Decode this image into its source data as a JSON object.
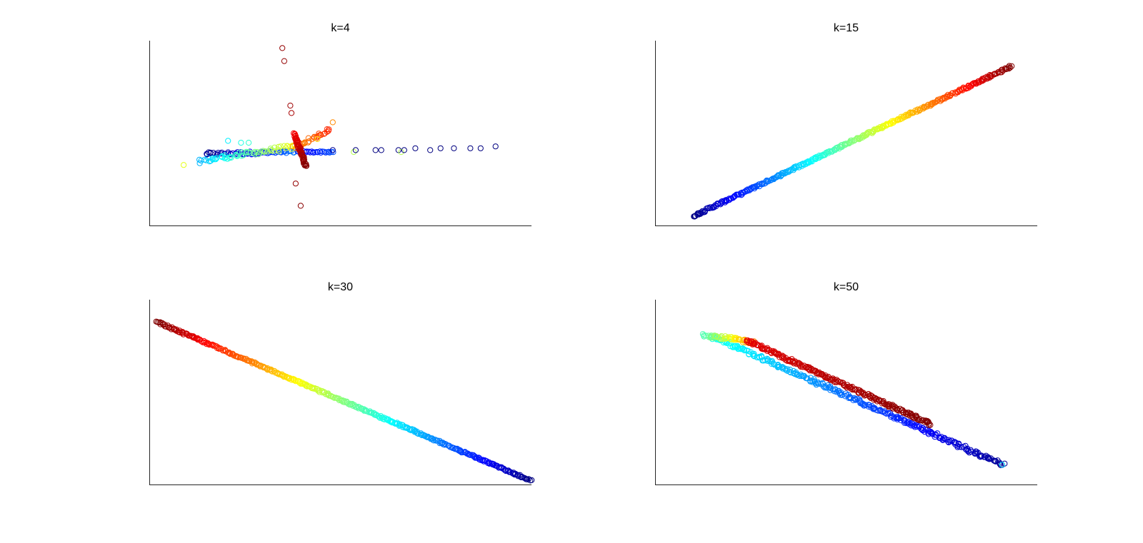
{
  "figure": {
    "colormap": "jet",
    "marker": "open-circle"
  },
  "chart_data": [
    {
      "type": "scatter",
      "title": "k=4",
      "xlabel": "",
      "ylabel": "",
      "xlim": [
        0,
        1
      ],
      "ylim": [
        0,
        1
      ],
      "grid": false,
      "axes_visible": [
        "left",
        "bottom"
      ],
      "ticks": "none",
      "color_by": "point index (jet colormap)",
      "segments": [
        {
          "from": [
            0.15,
            0.39
          ],
          "to": [
            0.39,
            0.4
          ],
          "n": 60,
          "c": [
            0.0,
            0.25
          ],
          "spread": 0.008
        },
        {
          "from": [
            0.13,
            0.35
          ],
          "to": [
            0.38,
            0.43
          ],
          "n": 60,
          "c": [
            0.3,
            0.62
          ],
          "spread": 0.012
        },
        {
          "from": [
            0.39,
            0.4
          ],
          "to": [
            0.48,
            0.4
          ],
          "n": 25,
          "c": [
            0.1,
            0.2
          ],
          "spread": 0.004
        },
        {
          "from": [
            0.38,
            0.42
          ],
          "to": [
            0.47,
            0.52
          ],
          "n": 30,
          "c": [
            0.72,
            0.84
          ],
          "spread": 0.01
        },
        {
          "from": [
            0.38,
            0.5
          ],
          "to": [
            0.41,
            0.32
          ],
          "n": 60,
          "c": [
            0.88,
            1.0
          ],
          "spread": 0.006
        }
      ],
      "points": [
        {
          "x": 0.348,
          "y": 0.96,
          "c": 0.98
        },
        {
          "x": 0.353,
          "y": 0.89,
          "c": 0.98
        },
        {
          "x": 0.369,
          "y": 0.65,
          "c": 0.97
        },
        {
          "x": 0.372,
          "y": 0.61,
          "c": 0.96
        },
        {
          "x": 0.383,
          "y": 0.23,
          "c": 0.98
        },
        {
          "x": 0.396,
          "y": 0.11,
          "c": 0.99
        },
        {
          "x": 0.09,
          "y": 0.33,
          "c": 0.6
        },
        {
          "x": 0.15,
          "y": 0.39,
          "c": 0.05
        },
        {
          "x": 0.206,
          "y": 0.46,
          "c": 0.36
        },
        {
          "x": 0.24,
          "y": 0.45,
          "c": 0.4
        },
        {
          "x": 0.26,
          "y": 0.45,
          "c": 0.42
        },
        {
          "x": 0.48,
          "y": 0.41,
          "c": 0.02
        },
        {
          "x": 0.535,
          "y": 0.4,
          "c": 0.55
        },
        {
          "x": 0.54,
          "y": 0.41,
          "c": 0.0
        },
        {
          "x": 0.592,
          "y": 0.41,
          "c": 0.0
        },
        {
          "x": 0.607,
          "y": 0.41,
          "c": 0.0
        },
        {
          "x": 0.652,
          "y": 0.41,
          "c": 0.0
        },
        {
          "x": 0.659,
          "y": 0.4,
          "c": 0.55
        },
        {
          "x": 0.667,
          "y": 0.41,
          "c": 0.0
        },
        {
          "x": 0.696,
          "y": 0.42,
          "c": 0.0
        },
        {
          "x": 0.735,
          "y": 0.41,
          "c": 0.0
        },
        {
          "x": 0.762,
          "y": 0.42,
          "c": 0.0
        },
        {
          "x": 0.797,
          "y": 0.42,
          "c": 0.0
        },
        {
          "x": 0.84,
          "y": 0.42,
          "c": 0.0
        },
        {
          "x": 0.867,
          "y": 0.42,
          "c": 0.0
        },
        {
          "x": 0.906,
          "y": 0.43,
          "c": 0.0
        },
        {
          "x": 0.48,
          "y": 0.56,
          "c": 0.74
        },
        {
          "x": 0.44,
          "y": 0.47,
          "c": 0.66
        }
      ]
    },
    {
      "type": "scatter",
      "title": "k=15",
      "xlabel": "",
      "ylabel": "",
      "xlim": [
        0,
        1
      ],
      "ylim": [
        0,
        1
      ],
      "grid": false,
      "axes_visible": [
        "left",
        "bottom"
      ],
      "ticks": "none",
      "color_by": "point index (jet colormap)",
      "segments": [
        {
          "from": [
            0.1,
            0.055
          ],
          "to": [
            0.93,
            0.86
          ],
          "n": 420,
          "c": [
            0.0,
            1.0
          ],
          "spread": 0.006
        }
      ],
      "points": []
    },
    {
      "type": "scatter",
      "title": "k=30",
      "xlabel": "",
      "ylabel": "",
      "xlim": [
        0,
        1
      ],
      "ylim": [
        0,
        1
      ],
      "grid": false,
      "axes_visible": [
        "left",
        "bottom"
      ],
      "ticks": "none",
      "color_by": "point index (jet colormap)",
      "segments": [
        {
          "from": [
            0.998,
            0.025
          ],
          "to": [
            0.02,
            0.88
          ],
          "n": 440,
          "c": [
            0.0,
            1.0
          ],
          "spread": 0.005
        }
      ],
      "points": []
    },
    {
      "type": "scatter",
      "title": "k=50",
      "xlabel": "",
      "ylabel": "",
      "xlim": [
        0,
        1
      ],
      "ylim": [
        0,
        1
      ],
      "grid": false,
      "axes_visible": [
        "left",
        "bottom"
      ],
      "ticks": "none",
      "color_by": "point index (jet colormap)",
      "segments": [
        {
          "from": [
            0.91,
            0.11
          ],
          "to": [
            0.15,
            0.8
          ],
          "n": 320,
          "c": [
            0.02,
            0.4
          ],
          "spread": 0.01
        },
        {
          "from": [
            0.13,
            0.81
          ],
          "to": [
            0.26,
            0.77
          ],
          "n": 60,
          "c": [
            0.45,
            0.75
          ],
          "spread": 0.01
        },
        {
          "from": [
            0.24,
            0.78
          ],
          "to": [
            0.72,
            0.33
          ],
          "n": 260,
          "c": [
            0.9,
            1.0
          ],
          "spread": 0.008
        }
      ],
      "points": [
        {
          "x": 0.908,
          "y": 0.11,
          "c": 0.35
        },
        {
          "x": 0.125,
          "y": 0.815,
          "c": 0.45
        }
      ]
    }
  ]
}
